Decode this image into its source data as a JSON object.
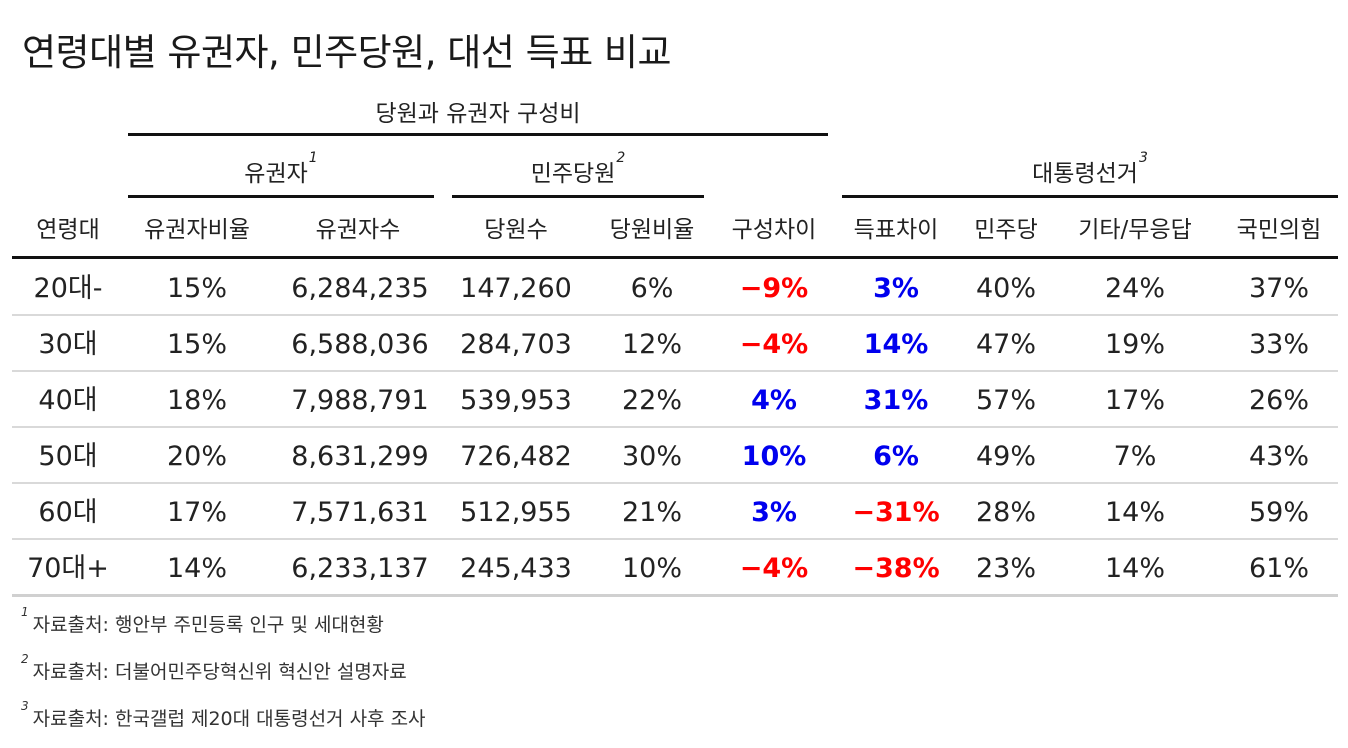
{
  "title": "연령대별 유권자, 민주당원, 대선 득표 비교",
  "group_composition": "당원과 유권자 구성비",
  "group_voters": "유권자",
  "group_voters_sup": "1",
  "group_members": "민주당원",
  "group_members_sup": "2",
  "group_election": "대통령선거",
  "group_election_sup": "3",
  "columns": {
    "age": "연령대",
    "voter_ratio": "유권자비율",
    "voter_count": "유권자수",
    "member_count": "당원수",
    "member_ratio": "당원비율",
    "composition_diff": "구성차이",
    "vote_diff": "득표차이",
    "democratic": "민주당",
    "other": "기타/무응답",
    "ppp": "국민의힘"
  },
  "rows": [
    {
      "age": "20대-",
      "voter_ratio": "15%",
      "voter_count": "6,284,235",
      "member_count": "147,260",
      "member_ratio": "6%",
      "composition_diff": "−9%",
      "comp_sign": "neg",
      "vote_diff": "3%",
      "vote_sign": "pos",
      "democratic": "40%",
      "other": "24%",
      "ppp": "37%"
    },
    {
      "age": "30대",
      "voter_ratio": "15%",
      "voter_count": "6,588,036",
      "member_count": "284,703",
      "member_ratio": "12%",
      "composition_diff": "−4%",
      "comp_sign": "neg",
      "vote_diff": "14%",
      "vote_sign": "pos",
      "democratic": "47%",
      "other": "19%",
      "ppp": "33%"
    },
    {
      "age": "40대",
      "voter_ratio": "18%",
      "voter_count": "7,988,791",
      "member_count": "539,953",
      "member_ratio": "22%",
      "composition_diff": "4%",
      "comp_sign": "pos",
      "vote_diff": "31%",
      "vote_sign": "pos",
      "democratic": "57%",
      "other": "17%",
      "ppp": "26%"
    },
    {
      "age": "50대",
      "voter_ratio": "20%",
      "voter_count": "8,631,299",
      "member_count": "726,482",
      "member_ratio": "30%",
      "composition_diff": "10%",
      "comp_sign": "pos",
      "vote_diff": "6%",
      "vote_sign": "pos",
      "democratic": "49%",
      "other": "7%",
      "ppp": "43%"
    },
    {
      "age": "60대",
      "voter_ratio": "17%",
      "voter_count": "7,571,631",
      "member_count": "512,955",
      "member_ratio": "21%",
      "composition_diff": "3%",
      "comp_sign": "pos",
      "vote_diff": "−31%",
      "vote_sign": "neg",
      "democratic": "28%",
      "other": "14%",
      "ppp": "59%"
    },
    {
      "age": "70대+",
      "voter_ratio": "14%",
      "voter_count": "6,233,137",
      "member_count": "245,433",
      "member_ratio": "10%",
      "composition_diff": "−4%",
      "comp_sign": "neg",
      "vote_diff": "−38%",
      "vote_sign": "neg",
      "democratic": "23%",
      "other": "14%",
      "ppp": "61%"
    }
  ],
  "colors": {
    "negative": "#ff0000",
    "positive": "#0000ee"
  },
  "notes": [
    {
      "num": "1",
      "text": "자료출처: 행안부 주민등록 인구 및 세대현황"
    },
    {
      "num": "2",
      "text": "자료출처: 더불어민주당혁신위 혁신안 설명자료"
    },
    {
      "num": "3",
      "text": "자료출처: 한국갤럽 제20대 대통령선거 사후 조사"
    }
  ]
}
